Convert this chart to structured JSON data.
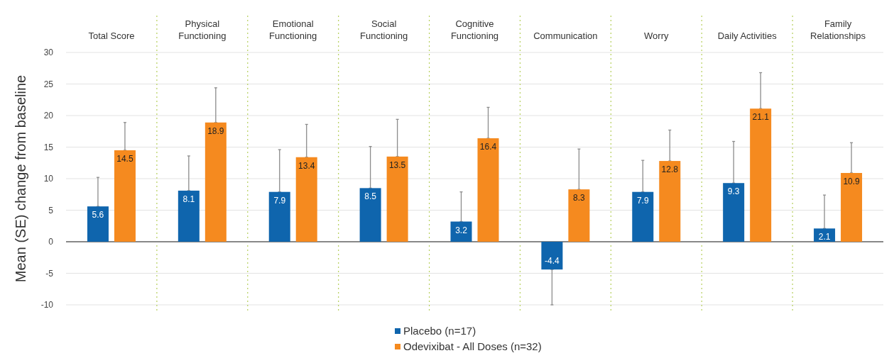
{
  "chart_data": {
    "type": "bar",
    "ylabel": "Mean (SE) change from baseline",
    "categories": [
      "Total Score",
      "Physical Functioning",
      "Emotional Functioning",
      "Social Functioning",
      "Cognitive Functioning",
      "Communication",
      "Worry",
      "Daily Activities",
      "Family Relationships"
    ],
    "series": [
      {
        "name": "Placebo (n=17)",
        "color": "#0f65ad",
        "values": [
          5.6,
          8.1,
          7.9,
          8.5,
          3.2,
          -4.4,
          7.9,
          9.3,
          2.1
        ],
        "errors": [
          [
            5.6,
            10.2
          ],
          [
            8.1,
            13.6
          ],
          [
            7.9,
            14.6
          ],
          [
            8.5,
            15.1
          ],
          [
            3.2,
            7.9
          ],
          [
            -10,
            -4.4
          ],
          [
            7.9,
            12.9
          ],
          [
            9.3,
            15.9
          ],
          [
            2.1,
            7.4
          ]
        ]
      },
      {
        "name": "Odevixibat - All Doses (n=32)",
        "color": "#f58a1f",
        "values": [
          14.5,
          18.9,
          13.4,
          13.5,
          16.4,
          8.3,
          12.8,
          21.1,
          10.9
        ],
        "errors": [
          [
            14.5,
            18.9
          ],
          [
            18.9,
            24.4
          ],
          [
            13.4,
            18.6
          ],
          [
            13.5,
            19.4
          ],
          [
            16.4,
            21.3
          ],
          [
            8.3,
            14.7
          ],
          [
            12.8,
            17.7
          ],
          [
            21.1,
            26.8
          ],
          [
            10.9,
            15.7
          ]
        ]
      }
    ],
    "ylim": [
      -10,
      30
    ],
    "yticks": [
      -10,
      -5,
      0,
      5,
      10,
      15,
      20,
      25,
      30
    ],
    "grid": "y",
    "legend": "bottom",
    "data_labels": true
  }
}
